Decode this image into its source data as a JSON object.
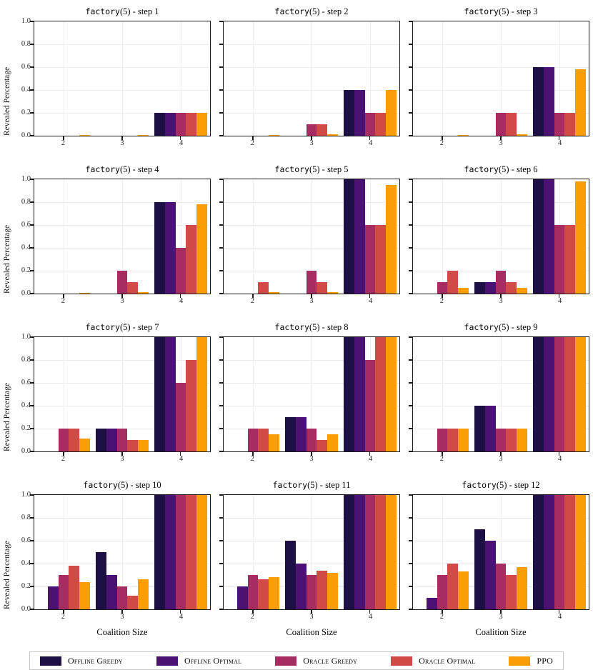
{
  "figure": {
    "ylabel": "Revealed Percentage",
    "xlabel": "Coalition Size",
    "ytick_labels": [
      "0.0",
      "0.2",
      "0.4",
      "0.6",
      "0.8",
      "1.0"
    ],
    "xtick_labels": [
      "2",
      "3",
      "4"
    ],
    "legend_position": "bottom",
    "grid": true
  },
  "legend": {
    "entries": [
      {
        "label": "Offline Greedy",
        "color": "#1c1044"
      },
      {
        "label": "Offline Optimal",
        "color": "#4b1173"
      },
      {
        "label": "Oracle Greedy",
        "color": "#a62c62"
      },
      {
        "label": "Oracle Optimal",
        "color": "#d14a45"
      },
      {
        "label": "PPO",
        "color": "#fa9d07"
      }
    ]
  },
  "chart_data": [
    {
      "type": "bar",
      "title": "factory(5) - step 1",
      "title_code": "factory",
      "title_rest": "(5) - step 1",
      "categories": [
        2,
        3,
        4
      ],
      "ylim": [
        0,
        1
      ],
      "series": [
        {
          "name": "Offline Greedy",
          "values": [
            0,
            0,
            0.2
          ]
        },
        {
          "name": "Offline Optimal",
          "values": [
            0,
            0,
            0.2
          ]
        },
        {
          "name": "Oracle Greedy",
          "values": [
            0,
            0,
            0.2
          ]
        },
        {
          "name": "Oracle Optimal",
          "values": [
            0,
            0,
            0.2
          ]
        },
        {
          "name": "PPO",
          "values": [
            0.005,
            0.005,
            0.2
          ]
        }
      ]
    },
    {
      "type": "bar",
      "title": "factory(5) - step 2",
      "title_code": "factory",
      "title_rest": "(5) - step 2",
      "categories": [
        2,
        3,
        4
      ],
      "ylim": [
        0,
        1
      ],
      "series": [
        {
          "name": "Offline Greedy",
          "values": [
            0,
            0,
            0.4
          ]
        },
        {
          "name": "Offline Optimal",
          "values": [
            0,
            0,
            0.4
          ]
        },
        {
          "name": "Oracle Greedy",
          "values": [
            0,
            0.1,
            0.2
          ]
        },
        {
          "name": "Oracle Optimal",
          "values": [
            0,
            0.1,
            0.2
          ]
        },
        {
          "name": "PPO",
          "values": [
            0.005,
            0.01,
            0.4
          ]
        }
      ]
    },
    {
      "type": "bar",
      "title": "factory(5) - step 3",
      "title_code": "factory",
      "title_rest": "(5) - step 3",
      "categories": [
        2,
        3,
        4
      ],
      "ylim": [
        0,
        1
      ],
      "series": [
        {
          "name": "Offline Greedy",
          "values": [
            0,
            0,
            0.6
          ]
        },
        {
          "name": "Offline Optimal",
          "values": [
            0,
            0,
            0.6
          ]
        },
        {
          "name": "Oracle Greedy",
          "values": [
            0,
            0.2,
            0.2
          ]
        },
        {
          "name": "Oracle Optimal",
          "values": [
            0,
            0.2,
            0.2
          ]
        },
        {
          "name": "PPO",
          "values": [
            0.005,
            0.01,
            0.58
          ]
        }
      ]
    },
    {
      "type": "bar",
      "title": "factory(5) - step 4",
      "title_code": "factory",
      "title_rest": "(5) - step 4",
      "categories": [
        2,
        3,
        4
      ],
      "ylim": [
        0,
        1
      ],
      "series": [
        {
          "name": "Offline Greedy",
          "values": [
            0,
            0,
            0.8
          ]
        },
        {
          "name": "Offline Optimal",
          "values": [
            0,
            0,
            0.8
          ]
        },
        {
          "name": "Oracle Greedy",
          "values": [
            0,
            0.2,
            0.4
          ]
        },
        {
          "name": "Oracle Optimal",
          "values": [
            0,
            0.1,
            0.6
          ]
        },
        {
          "name": "PPO",
          "values": [
            0.005,
            0.01,
            0.78
          ]
        }
      ]
    },
    {
      "type": "bar",
      "title": "factory(5) - step 5",
      "title_code": "factory",
      "title_rest": "(5) - step 5",
      "categories": [
        2,
        3,
        4
      ],
      "ylim": [
        0,
        1
      ],
      "series": [
        {
          "name": "Offline Greedy",
          "values": [
            0,
            0,
            1.0
          ]
        },
        {
          "name": "Offline Optimal",
          "values": [
            0,
            0,
            1.0
          ]
        },
        {
          "name": "Oracle Greedy",
          "values": [
            0,
            0.2,
            0.6
          ]
        },
        {
          "name": "Oracle Optimal",
          "values": [
            0.1,
            0.1,
            0.6
          ]
        },
        {
          "name": "PPO",
          "values": [
            0.01,
            0.015,
            0.95
          ]
        }
      ]
    },
    {
      "type": "bar",
      "title": "factory(5) - step 6",
      "title_code": "factory",
      "title_rest": "(5) - step 6",
      "categories": [
        2,
        3,
        4
      ],
      "ylim": [
        0,
        1
      ],
      "series": [
        {
          "name": "Offline Greedy",
          "values": [
            0,
            0.1,
            1.0
          ]
        },
        {
          "name": "Offline Optimal",
          "values": [
            0,
            0.1,
            1.0
          ]
        },
        {
          "name": "Oracle Greedy",
          "values": [
            0.1,
            0.2,
            0.6
          ]
        },
        {
          "name": "Oracle Optimal",
          "values": [
            0.2,
            0.1,
            0.6
          ]
        },
        {
          "name": "PPO",
          "values": [
            0.05,
            0.05,
            0.98
          ]
        }
      ]
    },
    {
      "type": "bar",
      "title": "factory(5) - step 7",
      "title_code": "factory",
      "title_rest": "(5) - step 7",
      "categories": [
        2,
        3,
        4
      ],
      "ylim": [
        0,
        1
      ],
      "series": [
        {
          "name": "Offline Greedy",
          "values": [
            0,
            0.2,
            1.0
          ]
        },
        {
          "name": "Offline Optimal",
          "values": [
            0,
            0.2,
            1.0
          ]
        },
        {
          "name": "Oracle Greedy",
          "values": [
            0.2,
            0.2,
            0.6
          ]
        },
        {
          "name": "Oracle Optimal",
          "values": [
            0.2,
            0.1,
            0.8
          ]
        },
        {
          "name": "PPO",
          "values": [
            0.11,
            0.1,
            1.0
          ]
        }
      ]
    },
    {
      "type": "bar",
      "title": "factory(5) - step 8",
      "title_code": "factory",
      "title_rest": "(5) - step 8",
      "categories": [
        2,
        3,
        4
      ],
      "ylim": [
        0,
        1
      ],
      "series": [
        {
          "name": "Offline Greedy",
          "values": [
            0,
            0.3,
            1.0
          ]
        },
        {
          "name": "Offline Optimal",
          "values": [
            0,
            0.3,
            1.0
          ]
        },
        {
          "name": "Oracle Greedy",
          "values": [
            0.2,
            0.2,
            0.8
          ]
        },
        {
          "name": "Oracle Optimal",
          "values": [
            0.2,
            0.1,
            1.0
          ]
        },
        {
          "name": "PPO",
          "values": [
            0.15,
            0.15,
            1.0
          ]
        }
      ]
    },
    {
      "type": "bar",
      "title": "factory(5) - step 9",
      "title_code": "factory",
      "title_rest": "(5) - step 9",
      "categories": [
        2,
        3,
        4
      ],
      "ylim": [
        0,
        1
      ],
      "series": [
        {
          "name": "Offline Greedy",
          "values": [
            0,
            0.4,
            1.0
          ]
        },
        {
          "name": "Offline Optimal",
          "values": [
            0,
            0.4,
            1.0
          ]
        },
        {
          "name": "Oracle Greedy",
          "values": [
            0.2,
            0.2,
            1.0
          ]
        },
        {
          "name": "Oracle Optimal",
          "values": [
            0.2,
            0.2,
            1.0
          ]
        },
        {
          "name": "PPO",
          "values": [
            0.2,
            0.2,
            1.0
          ]
        }
      ]
    },
    {
      "type": "bar",
      "title": "factory(5) - step 10",
      "title_code": "factory",
      "title_rest": "(5) - step 10",
      "categories": [
        2,
        3,
        4
      ],
      "ylim": [
        0,
        1
      ],
      "series": [
        {
          "name": "Offline Greedy",
          "values": [
            0,
            0.5,
            1.0
          ]
        },
        {
          "name": "Offline Optimal",
          "values": [
            0.2,
            0.3,
            1.0
          ]
        },
        {
          "name": "Oracle Greedy",
          "values": [
            0.3,
            0.2,
            1.0
          ]
        },
        {
          "name": "Oracle Optimal",
          "values": [
            0.38,
            0.12,
            1.0
          ]
        },
        {
          "name": "PPO",
          "values": [
            0.24,
            0.26,
            1.0
          ]
        }
      ]
    },
    {
      "type": "bar",
      "title": "factory(5) - step 11",
      "title_code": "factory",
      "title_rest": "(5) - step 11",
      "categories": [
        2,
        3,
        4
      ],
      "ylim": [
        0,
        1
      ],
      "series": [
        {
          "name": "Offline Greedy",
          "values": [
            0,
            0.6,
            1.0
          ]
        },
        {
          "name": "Offline Optimal",
          "values": [
            0.2,
            0.4,
            1.0
          ]
        },
        {
          "name": "Oracle Greedy",
          "values": [
            0.3,
            0.3,
            1.0
          ]
        },
        {
          "name": "Oracle Optimal",
          "values": [
            0.26,
            0.34,
            1.0
          ]
        },
        {
          "name": "PPO",
          "values": [
            0.28,
            0.32,
            1.0
          ]
        }
      ]
    },
    {
      "type": "bar",
      "title": "factory(5) - step 12",
      "title_code": "factory",
      "title_rest": "(5) - step 12",
      "categories": [
        2,
        3,
        4
      ],
      "ylim": [
        0,
        1
      ],
      "series": [
        {
          "name": "Offline Greedy",
          "values": [
            0,
            0.7,
            1.0
          ]
        },
        {
          "name": "Offline Optimal",
          "values": [
            0.1,
            0.6,
            1.0
          ]
        },
        {
          "name": "Oracle Greedy",
          "values": [
            0.3,
            0.4,
            1.0
          ]
        },
        {
          "name": "Oracle Optimal",
          "values": [
            0.4,
            0.3,
            1.0
          ]
        },
        {
          "name": "PPO",
          "values": [
            0.33,
            0.37,
            1.0
          ]
        }
      ]
    }
  ]
}
